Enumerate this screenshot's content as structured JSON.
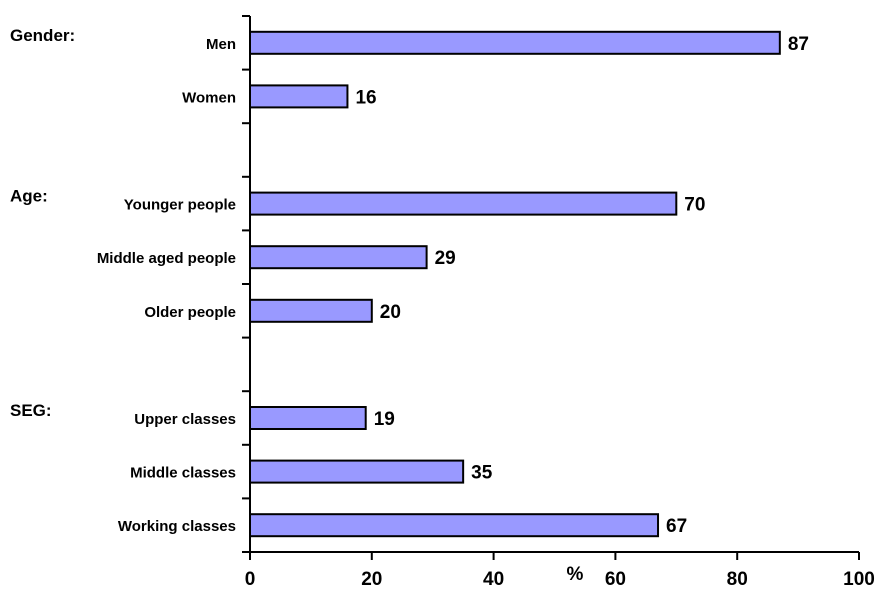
{
  "chart_data": {
    "type": "bar",
    "orientation": "horizontal",
    "groups": [
      {
        "label": "Gender:",
        "categories": [
          "Men",
          "Women"
        ],
        "values": [
          87,
          16
        ]
      },
      {
        "label": "Age:",
        "categories": [
          "Younger people",
          "Middle aged people",
          "Older people"
        ],
        "values": [
          70,
          29,
          20
        ]
      },
      {
        "label": "SEG:",
        "categories": [
          "Upper classes",
          "Middle classes",
          "Working classes"
        ],
        "values": [
          19,
          35,
          67
        ]
      }
    ],
    "categories": [
      "Men",
      "Women",
      "Younger people",
      "Middle aged people",
      "Older people",
      "Upper classes",
      "Middle classes",
      "Working classes"
    ],
    "values": [
      87,
      16,
      70,
      29,
      20,
      19,
      35,
      67
    ],
    "xlabel": "%",
    "xlim": [
      0,
      100
    ],
    "xticks": [
      0,
      20,
      40,
      60,
      80,
      100
    ],
    "grid": false,
    "legend": "none",
    "bar_color": "#9999ff",
    "edge_color": "#000000"
  }
}
